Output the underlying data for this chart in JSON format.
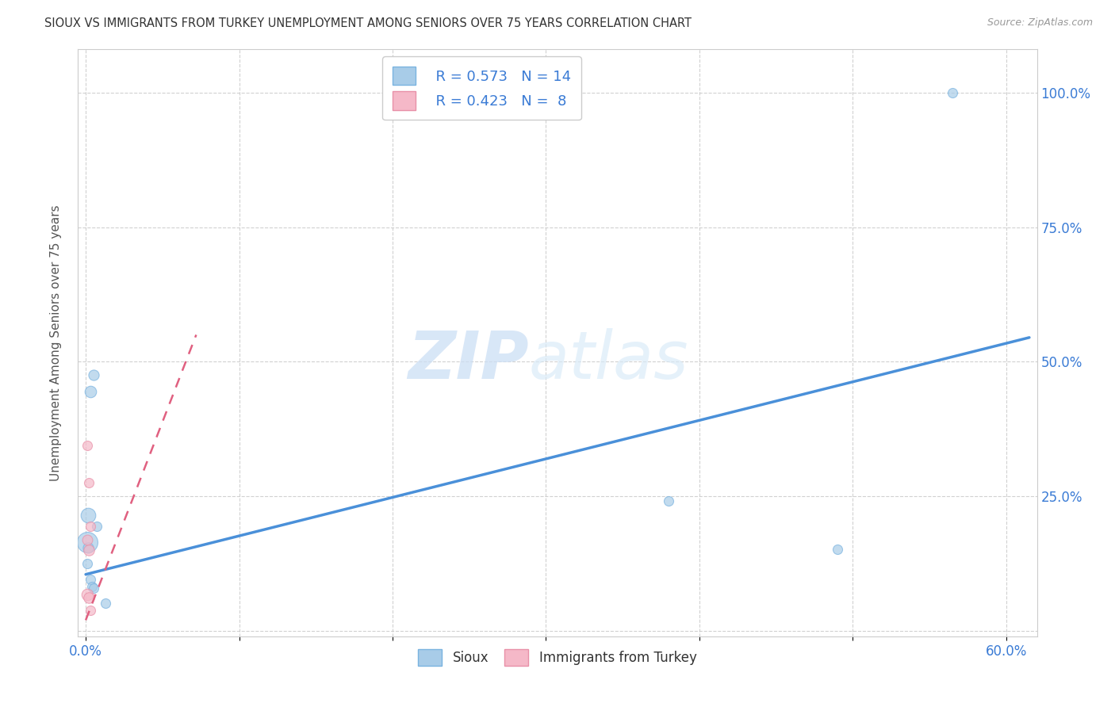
{
  "title": "SIOUX VS IMMIGRANTS FROM TURKEY UNEMPLOYMENT AMONG SENIORS OVER 75 YEARS CORRELATION CHART",
  "source": "Source: ZipAtlas.com",
  "ylabel": "Unemployment Among Seniors over 75 years",
  "xlim": [
    -0.005,
    0.62
  ],
  "ylim": [
    -0.01,
    1.08
  ],
  "background_color": "#ffffff",
  "watermark_zip": "ZIP",
  "watermark_atlas": "atlas",
  "sioux_color": "#a8cce8",
  "sioux_edge_color": "#7ab3e0",
  "turkey_color": "#f5b8c8",
  "turkey_edge_color": "#e890a8",
  "sioux_line_color": "#4a90d9",
  "turkey_line_color": "#e06080",
  "legend_blue_r": "0.573",
  "legend_blue_n": "14",
  "legend_pink_r": "0.423",
  "legend_pink_n": " 8",
  "sioux_points": [
    [
      0.0015,
      0.215,
      180
    ],
    [
      0.003,
      0.445,
      110
    ],
    [
      0.005,
      0.475,
      90
    ],
    [
      0.007,
      0.195,
      75
    ],
    [
      0.001,
      0.165,
      350
    ],
    [
      0.0015,
      0.155,
      90
    ],
    [
      0.001,
      0.125,
      75
    ],
    [
      0.003,
      0.095,
      75
    ],
    [
      0.004,
      0.082,
      75
    ],
    [
      0.005,
      0.08,
      75
    ],
    [
      0.013,
      0.052,
      75
    ],
    [
      0.38,
      0.242,
      75
    ],
    [
      0.49,
      0.152,
      75
    ],
    [
      0.565,
      1.0,
      75
    ]
  ],
  "turkey_points": [
    [
      0.001,
      0.345,
      75
    ],
    [
      0.002,
      0.275,
      75
    ],
    [
      0.003,
      0.195,
      75
    ],
    [
      0.001,
      0.17,
      85
    ],
    [
      0.002,
      0.15,
      95
    ],
    [
      0.001,
      0.068,
      110
    ],
    [
      0.002,
      0.062,
      95
    ],
    [
      0.003,
      0.038,
      75
    ]
  ],
  "sioux_trendline": {
    "x_start": 0.0,
    "y_start": 0.105,
    "x_end": 0.615,
    "y_end": 0.545
  },
  "turkey_trendline": {
    "x_start": 0.0,
    "y_start": 0.02,
    "x_end": 0.072,
    "y_end": 0.55
  },
  "xticks": [
    0.0,
    0.1,
    0.2,
    0.3,
    0.4,
    0.5,
    0.6
  ],
  "xtick_labels": [
    "0.0%",
    "",
    "",
    "",
    "",
    "",
    "60.0%"
  ],
  "yticks": [
    0.0,
    0.25,
    0.5,
    0.75,
    1.0
  ],
  "ytick_labels_right": [
    "",
    "25.0%",
    "50.0%",
    "75.0%",
    "100.0%"
  ]
}
